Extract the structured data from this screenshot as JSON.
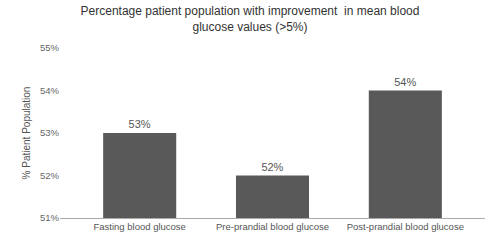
{
  "chart_data": {
    "type": "bar",
    "title": "Percentage patient population with improvement  in mean blood\nglucose values (>5%)",
    "ylabel": "% Patient Population",
    "categories": [
      "Fasting blood glucose",
      "Pre-prandial blood glucose",
      "Post-prandial blood glucose"
    ],
    "values": [
      53,
      52,
      54
    ],
    "value_labels": [
      "53%",
      "52%",
      "54%"
    ],
    "data_labels": true,
    "color": "#595959",
    "ylim": [
      51,
      55
    ],
    "yticks": [
      {
        "value": 51,
        "label": "51%"
      },
      {
        "value": 52,
        "label": "52%"
      },
      {
        "value": 53,
        "label": "53%"
      },
      {
        "value": 54,
        "label": "54%"
      },
      {
        "value": 55,
        "label": "55%"
      }
    ],
    "grid": false
  }
}
